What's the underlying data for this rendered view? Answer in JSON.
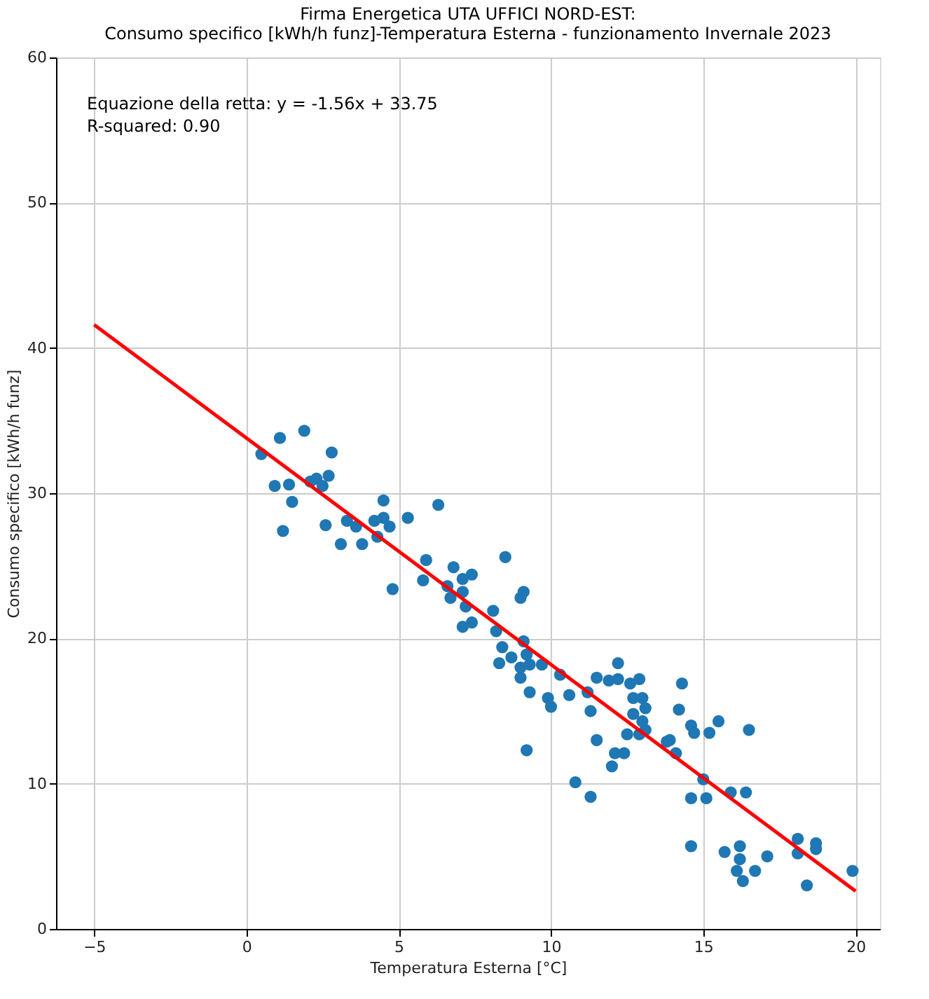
{
  "chart_data": {
    "type": "scatter",
    "title": [
      "Firma Energetica UTA UFFICI NORD-EST:",
      "Consumo specifico [kWh/h funz]-Temperatura Esterna - funzionamento Invernale 2023"
    ],
    "xlabel": "Temperatura Esterna [°C]",
    "ylabel": "Consumo specifico [kWh/h funz]",
    "annotations": [
      "Equazione della retta: y = -1.56x + 33.75",
      "R-squared: 0.90"
    ],
    "xlim": [
      -6.25,
      20.8
    ],
    "ylim": [
      0,
      60
    ],
    "xticks": [
      -5,
      0,
      5,
      10,
      15,
      20
    ],
    "yticks": [
      0,
      10,
      20,
      30,
      40,
      50,
      60
    ],
    "grid": true,
    "series": [
      {
        "type": "scatter",
        "color": "#1f77b4",
        "marker": "circle",
        "x": [
          0.49,
          0.93,
          1.1,
          1.2,
          1.4,
          1.5,
          1.9,
          2.1,
          2.3,
          2.5,
          2.6,
          2.7,
          2.8,
          3.1,
          3.3,
          3.6,
          3.8,
          4.2,
          4.3,
          4.5,
          4.5,
          4.7,
          4.8,
          5.3,
          5.8,
          5.9,
          6.3,
          6.6,
          6.7,
          6.8,
          7.1,
          7.1,
          7.2,
          7.4,
          7.1,
          7.4,
          8.1,
          8.2,
          8.5,
          8.4,
          8.3,
          8.7,
          9.0,
          9.0,
          9.0,
          9.1,
          9.1,
          9.2,
          9.3,
          9.3,
          9.2,
          9.7,
          9.9,
          10.0,
          10.3,
          10.6,
          10.8,
          11.2,
          11.3,
          11.3,
          11.5,
          11.5,
          11.9,
          12.0,
          12.1,
          12.2,
          12.2,
          12.4,
          12.5,
          12.6,
          12.7,
          12.7,
          12.9,
          12.9,
          13.0,
          13.0,
          13.1,
          13.1,
          13.8,
          13.9,
          14.1,
          14.2,
          14.3,
          14.6,
          14.6,
          14.7,
          14.6,
          15.0,
          15.1,
          15.2,
          15.5,
          15.7,
          15.9,
          16.1,
          16.2,
          16.2,
          16.3,
          16.4,
          16.5,
          16.7,
          17.1,
          18.1,
          18.1,
          18.4,
          18.7,
          18.7,
          19.9
        ],
        "values": [
          32.7,
          30.5,
          33.8,
          27.4,
          30.6,
          29.4,
          34.3,
          30.8,
          31.0,
          30.5,
          27.8,
          31.2,
          32.8,
          26.5,
          28.1,
          27.7,
          26.5,
          28.1,
          27.0,
          28.3,
          29.5,
          27.7,
          23.4,
          28.3,
          24.0,
          25.4,
          29.2,
          23.6,
          22.8,
          24.9,
          23.2,
          24.1,
          22.2,
          24.4,
          20.8,
          21.1,
          21.9,
          20.5,
          25.6,
          19.4,
          18.3,
          18.7,
          18.0,
          17.3,
          22.8,
          23.2,
          19.8,
          18.9,
          16.3,
          18.2,
          12.3,
          18.2,
          15.9,
          15.3,
          17.5,
          16.1,
          10.1,
          16.3,
          15.0,
          9.1,
          13.0,
          17.3,
          17.1,
          11.2,
          12.1,
          18.3,
          17.2,
          12.1,
          13.4,
          16.9,
          15.9,
          14.8,
          13.4,
          17.2,
          15.9,
          14.3,
          15.2,
          13.7,
          12.9,
          13.0,
          12.1,
          15.1,
          16.9,
          14.0,
          9.0,
          13.5,
          5.7,
          10.3,
          9.0,
          13.5,
          14.3,
          5.3,
          9.4,
          4.0,
          5.7,
          4.8,
          3.3,
          9.4,
          13.7,
          4.0,
          5.0,
          6.2,
          5.2,
          3.0,
          5.9,
          5.5,
          4.0
        ]
      },
      {
        "type": "line",
        "color": "#ff0000",
        "x": [
          -5,
          20
        ],
        "values": [
          41.6,
          2.6
        ],
        "marker": "none"
      }
    ]
  }
}
